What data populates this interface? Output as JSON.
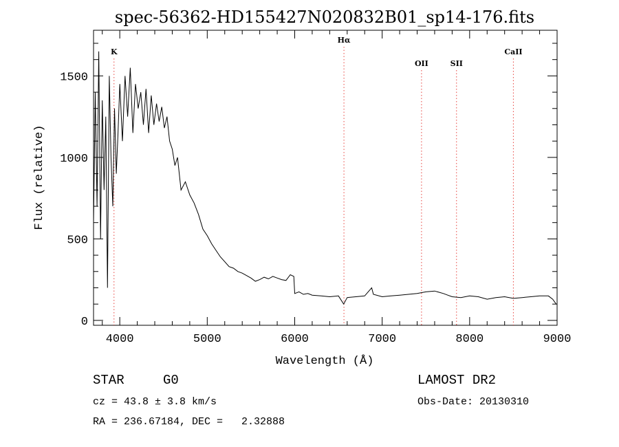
{
  "chart_data": {
    "type": "line",
    "title": "spec-56362-HD155427N020832B01_sp14-176.fits",
    "xlabel": "Wavelength (Å)",
    "ylabel": "Flux (relative)",
    "xlim": [
      3700,
      9000
    ],
    "ylim": [
      -30,
      1780
    ],
    "x_ticks": [
      4000,
      5000,
      6000,
      7000,
      8000,
      9000
    ],
    "y_ticks": [
      0,
      500,
      1000,
      1500
    ],
    "grid": false,
    "line_color": "#000000",
    "marker_color": "#e8413c",
    "line_markers": [
      {
        "label": "K",
        "x": 3934
      },
      {
        "label": "Hα",
        "x": 6563
      },
      {
        "label": "OII",
        "x": 7450
      },
      {
        "label": "SII",
        "x": 7850
      },
      {
        "label": "CaII",
        "x": 8500
      }
    ],
    "series": [
      {
        "x": [
          3700,
          3720,
          3740,
          3760,
          3780,
          3800,
          3820,
          3840,
          3860,
          3880,
          3900,
          3920,
          3940,
          3960,
          3980,
          4000,
          4030,
          4060,
          4090,
          4120,
          4150,
          4180,
          4210,
          4240,
          4270,
          4300,
          4330,
          4360,
          4390,
          4420,
          4450,
          4480,
          4510,
          4540,
          4570,
          4600,
          4630,
          4660,
          4700,
          4750,
          4800,
          4850,
          4900,
          4950,
          5000,
          5050,
          5100,
          5150,
          5200,
          5250,
          5300,
          5350,
          5400,
          5450,
          5500,
          5550,
          5600,
          5650,
          5700,
          5750,
          5800,
          5850,
          5900,
          5950,
          5990,
          6000,
          6050,
          6100,
          6150,
          6200,
          6300,
          6400,
          6500,
          6560,
          6600,
          6700,
          6800,
          6880,
          6900,
          7000,
          7100,
          7200,
          7300,
          7400,
          7500,
          7600,
          7700,
          7750,
          7800,
          7900,
          8000,
          8100,
          8200,
          8300,
          8400,
          8500,
          8600,
          8700,
          8800,
          8900,
          8950,
          8990
        ],
        "y": [
          600,
          1400,
          700,
          1650,
          500,
          1350,
          800,
          1250,
          200,
          1500,
          1000,
          700,
          1300,
          900,
          1150,
          1450,
          1100,
          1500,
          1250,
          1550,
          1150,
          1450,
          1300,
          1400,
          1200,
          1420,
          1150,
          1380,
          1200,
          1330,
          1220,
          1310,
          1180,
          1250,
          1100,
          1050,
          950,
          1000,
          800,
          850,
          770,
          720,
          650,
          560,
          520,
          470,
          430,
          390,
          360,
          330,
          320,
          300,
          290,
          275,
          260,
          240,
          250,
          265,
          255,
          270,
          260,
          250,
          245,
          280,
          270,
          165,
          175,
          160,
          165,
          155,
          150,
          145,
          150,
          100,
          140,
          145,
          150,
          200,
          160,
          145,
          150,
          155,
          160,
          165,
          175,
          180,
          165,
          155,
          145,
          140,
          150,
          145,
          130,
          140,
          145,
          135,
          140,
          145,
          150,
          150,
          130,
          100
        ]
      }
    ]
  },
  "info": {
    "object_type": "STAR",
    "subclass": "G0",
    "survey": "LAMOST DR2",
    "cz": "cz = 43.8 ± 3.8 km/s",
    "obs_date": "Obs-Date: 20130310",
    "radec": "RA = 236.67184, DEC =   2.32888"
  }
}
